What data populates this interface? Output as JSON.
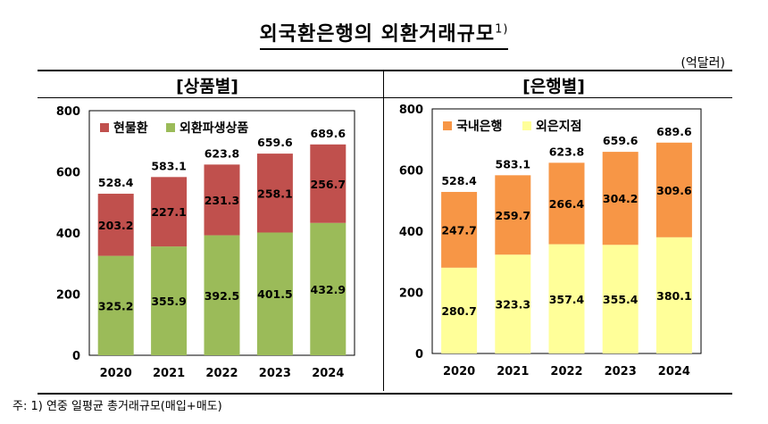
{
  "title": "외국환은행의 외환거래규모",
  "title_sup": "1)",
  "unit": "(억달러)",
  "footnote": "주: 1) 연중 일평균 총거래규모(매입+매도)",
  "chart_data": [
    {
      "type": "bar",
      "stacked": true,
      "title": "[상품별]",
      "categories": [
        "2020",
        "2021",
        "2022",
        "2023",
        "2024"
      ],
      "series": [
        {
          "name": "외환파생상품",
          "values": [
            325.2,
            355.9,
            392.5,
            401.5,
            432.9
          ],
          "color": "#9bbb59"
        },
        {
          "name": "현물환",
          "values": [
            203.2,
            227.1,
            231.3,
            258.1,
            256.7
          ],
          "color": "#c0504d"
        }
      ],
      "totals": [
        528.4,
        583.1,
        623.8,
        659.6,
        689.6
      ],
      "legend": [
        "현물환",
        "외환파생상품"
      ],
      "legend_colors": [
        "#c0504d",
        "#9bbb59"
      ],
      "yticks": [
        0,
        200,
        400,
        600,
        800
      ],
      "ylim": [
        0,
        800
      ],
      "legend_position": "top-left",
      "grid": false
    },
    {
      "type": "bar",
      "stacked": true,
      "title": "[은행별]",
      "categories": [
        "2020",
        "2021",
        "2022",
        "2023",
        "2024"
      ],
      "series": [
        {
          "name": "외은지점",
          "values": [
            280.7,
            323.3,
            357.4,
            355.4,
            380.1
          ],
          "color": "#ffff99"
        },
        {
          "name": "국내은행",
          "values": [
            247.7,
            259.7,
            266.4,
            304.2,
            309.6
          ],
          "color": "#f79646"
        }
      ],
      "totals": [
        528.4,
        583.1,
        623.8,
        659.6,
        689.6
      ],
      "legend": [
        "국내은행",
        "외은지점"
      ],
      "legend_colors": [
        "#f79646",
        "#ffff99"
      ],
      "yticks": [
        0,
        200,
        400,
        600,
        800
      ],
      "ylim": [
        0,
        800
      ],
      "legend_position": "top-left",
      "grid": false
    }
  ]
}
